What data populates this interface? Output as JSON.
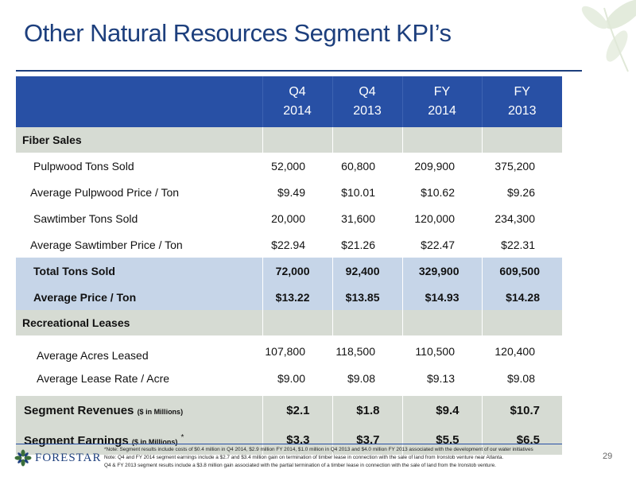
{
  "title": "Other Natural Resources Segment KPI’s",
  "columns": [
    {
      "line1": "Q4",
      "line2": "2014"
    },
    {
      "line1": "Q4",
      "line2": "2013"
    },
    {
      "line1": "FY",
      "line2": "2014"
    },
    {
      "line1": "FY",
      "line2": "2013"
    }
  ],
  "fiber": {
    "heading": "Fiber Sales",
    "rows": [
      {
        "label": "Pulpwood Tons Sold",
        "values": [
          "52,000",
          "60,800",
          "209,900",
          "375,200"
        ]
      },
      {
        "label": "Average Pulpwood Price / Ton",
        "values": [
          "$9.49",
          "$10.01",
          "$10.62",
          "$9.26"
        ]
      },
      {
        "label": "Sawtimber Tons Sold",
        "values": [
          "20,000",
          "31,600",
          "120,000",
          "234,300"
        ]
      },
      {
        "label": "Average Sawtimber Price / Ton",
        "values": [
          "$22.94",
          "$21.26",
          "$22.47",
          "$22.31"
        ]
      }
    ],
    "totals": [
      {
        "label": "Total Tons Sold",
        "values": [
          "72,000",
          "92,400",
          "329,900",
          "609,500"
        ]
      },
      {
        "label": "Average Price / Ton",
        "values": [
          "$13.22",
          "$13.85",
          "$14.93",
          "$14.28"
        ]
      }
    ]
  },
  "leases": {
    "heading": "Recreational Leases",
    "rows": [
      {
        "label": "Average Acres Leased",
        "values": [
          "107,800",
          "118,500",
          "110,500",
          "120,400"
        ]
      },
      {
        "label": "Average Lease Rate / Acre",
        "values": [
          "$9.00",
          "$9.08",
          "$9.13",
          "$9.08"
        ]
      }
    ]
  },
  "segment": {
    "revenues": {
      "label": "Segment Revenues",
      "note": "($ in Millions)",
      "values": [
        "$2.1",
        "$1.8",
        "$9.4",
        "$10.7"
      ]
    },
    "earnings": {
      "label": "Segment Earnings",
      "note": "($ in Millions)",
      "marker": "*",
      "values": [
        "$3.3",
        "$3.7",
        "$5.5",
        "$6.5"
      ]
    }
  },
  "footnotes": [
    "*Note: Segment results include costs of $0.4 million in Q4 2014, $2.9 million FY 2014, $1.0 million in Q4 2013 and $4.0 million FY 2013 associated with the development of our water initiatives",
    "Note: Q4 and FY 2014 segment earnings include a $2.7 and $3.4 million gain on termination of timber lease in connection with the sale of land from Ironstob venture near Atlanta.",
    "Q4 & FY 2013 segment results include a $3.8 million gain associated with the partial termination of a timber lease in connection with the sale of land from the Ironstob venture."
  ],
  "logo": {
    "text": "FORESTAR"
  },
  "page_number": "29",
  "colors": {
    "title": "#1d3f7d",
    "header_bg": "#2850a5",
    "section_bg": "#d6dbd3",
    "total_bg": "#c6d5e8"
  }
}
